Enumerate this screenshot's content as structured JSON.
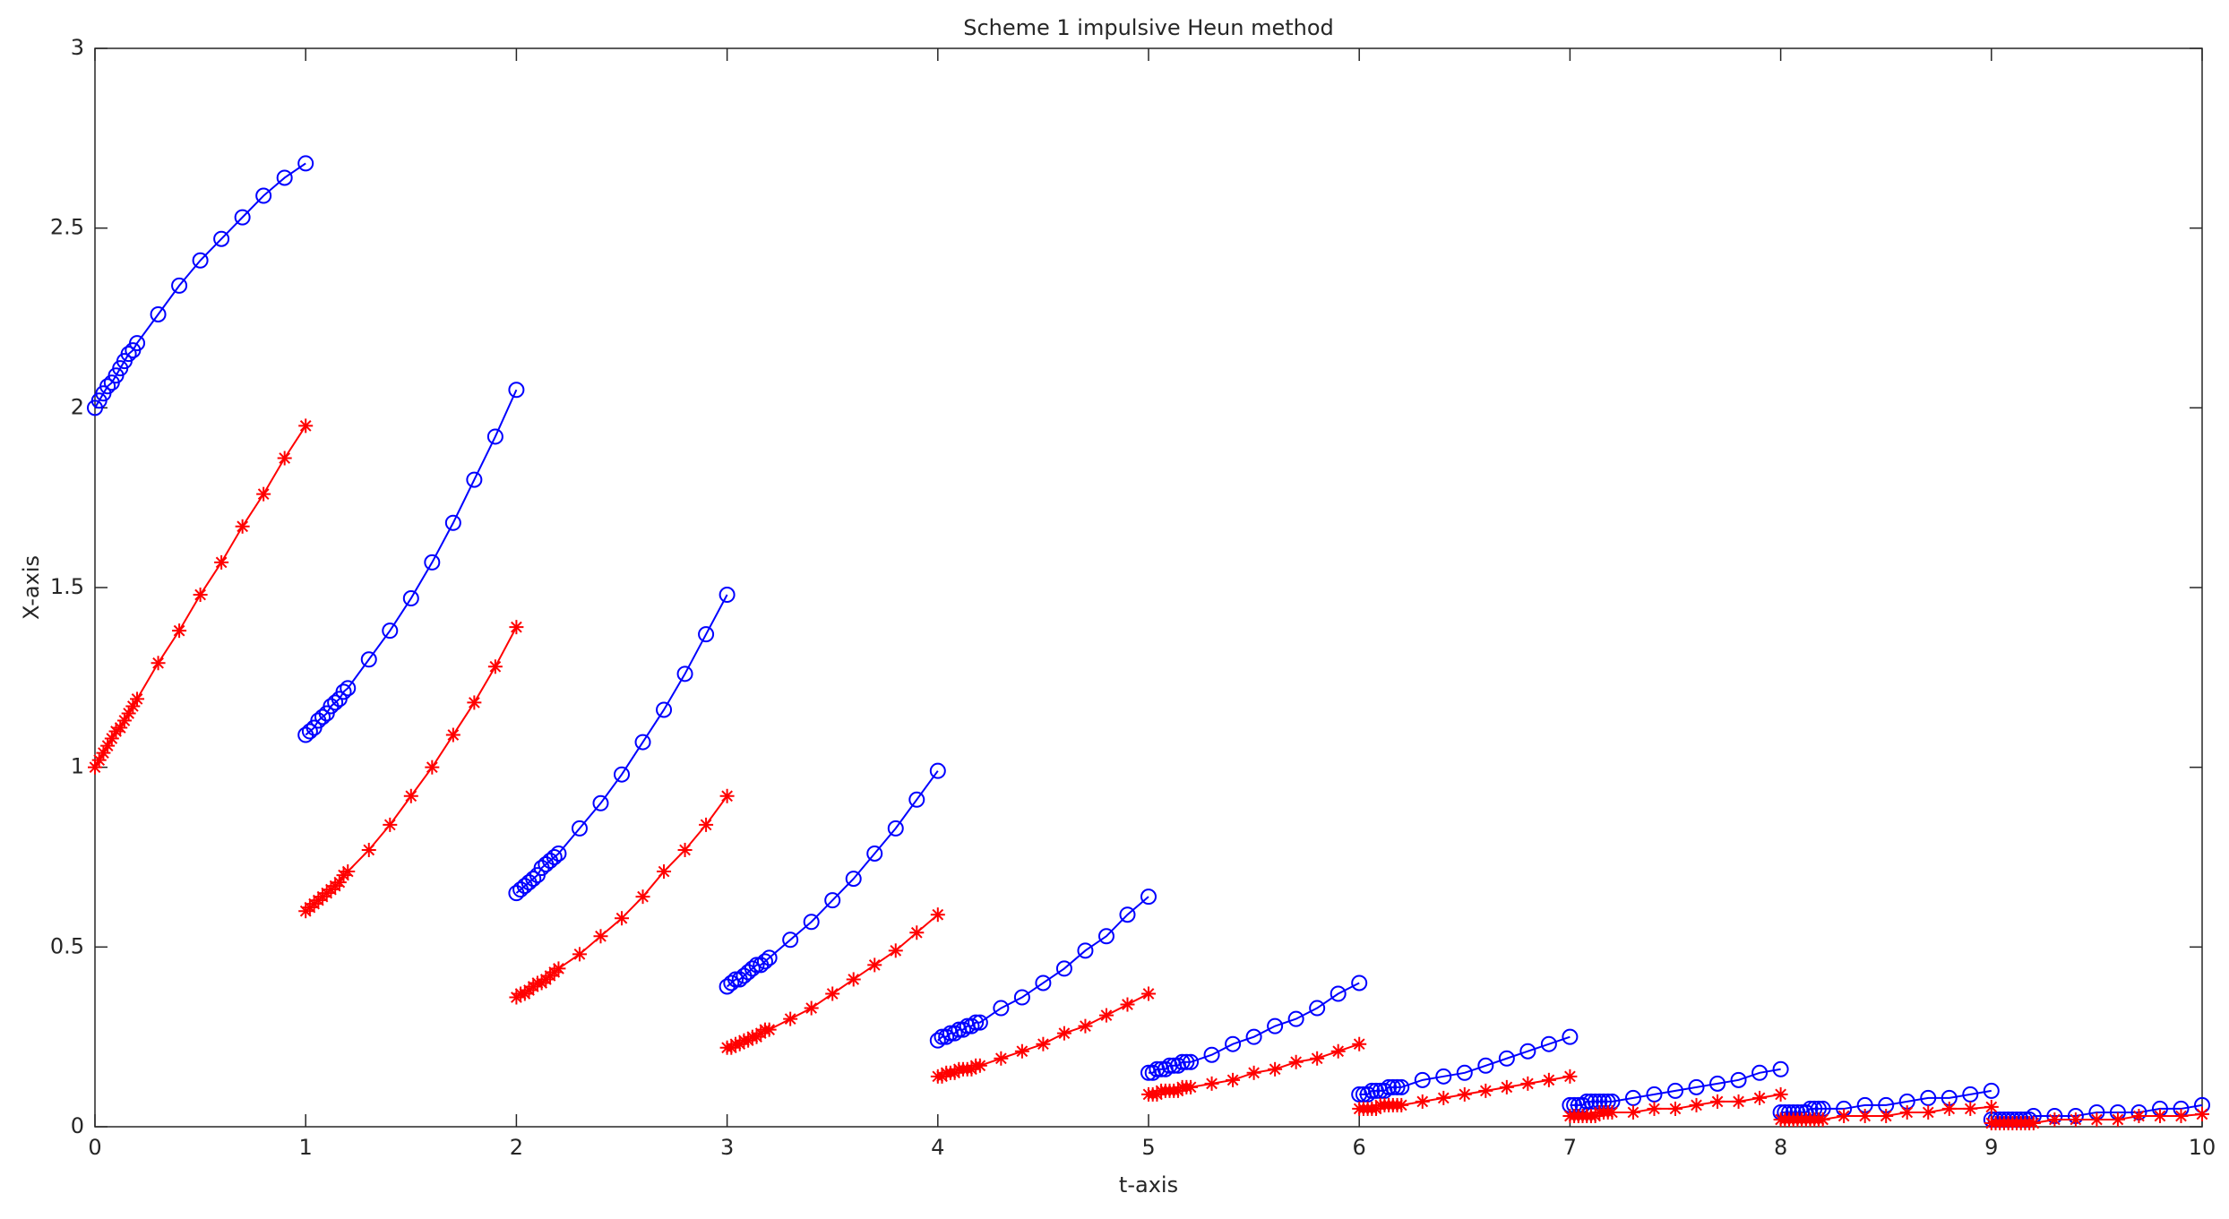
{
  "chart_data": {
    "type": "line",
    "title": "Scheme 1 impulsive Heun method",
    "xlabel": "t-axis",
    "ylabel": "X-axis",
    "xlim": [
      0,
      10
    ],
    "ylim": [
      0,
      3
    ],
    "xticks": [
      0,
      1,
      2,
      3,
      4,
      5,
      6,
      7,
      8,
      9,
      10
    ],
    "yticks": [
      0,
      0.5,
      1,
      1.5,
      2,
      2.5,
      3
    ],
    "x": [
      0,
      0.02,
      0.04,
      0.06,
      0.08,
      0.1,
      0.12,
      0.14,
      0.16,
      0.18,
      0.2,
      0.3,
      0.4,
      0.5,
      0.6,
      0.7,
      0.8,
      0.9,
      1,
      null,
      1,
      1.02,
      1.04,
      1.06,
      1.08,
      1.1,
      1.12,
      1.14,
      1.16,
      1.18,
      1.2,
      1.3,
      1.4,
      1.5,
      1.6,
      1.7,
      1.8,
      1.9,
      2,
      null,
      2,
      2.02,
      2.04,
      2.06,
      2.08,
      2.1,
      2.12,
      2.14,
      2.16,
      2.18,
      2.2,
      2.3,
      2.4,
      2.5,
      2.6,
      2.7,
      2.8,
      2.9,
      3,
      null,
      3,
      3.02,
      3.04,
      3.06,
      3.08,
      3.1,
      3.12,
      3.14,
      3.16,
      3.18,
      3.2,
      3.3,
      3.4,
      3.5,
      3.6,
      3.7,
      3.8,
      3.9,
      4,
      null,
      4,
      4.02,
      4.04,
      4.06,
      4.08,
      4.1,
      4.12,
      4.14,
      4.16,
      4.18,
      4.2,
      4.3,
      4.4,
      4.5,
      4.6,
      4.7,
      4.8,
      4.9,
      5,
      null,
      5,
      5.02,
      5.04,
      5.06,
      5.08,
      5.1,
      5.12,
      5.14,
      5.16,
      5.18,
      5.2,
      5.3,
      5.4,
      5.5,
      5.6,
      5.7,
      5.8,
      5.9,
      6,
      null,
      6,
      6.02,
      6.04,
      6.06,
      6.08,
      6.1,
      6.12,
      6.14,
      6.16,
      6.18,
      6.2,
      6.3,
      6.4,
      6.5,
      6.6,
      6.7,
      6.8,
      6.9,
      7,
      null,
      7,
      7.02,
      7.04,
      7.06,
      7.08,
      7.1,
      7.12,
      7.14,
      7.16,
      7.18,
      7.2,
      7.3,
      7.4,
      7.5,
      7.6,
      7.7,
      7.8,
      7.9,
      8,
      null,
      8,
      8.02,
      8.04,
      8.06,
      8.08,
      8.1,
      8.12,
      8.14,
      8.16,
      8.18,
      8.2,
      8.3,
      8.4,
      8.5,
      8.6,
      8.7,
      8.8,
      8.9,
      9,
      null,
      9,
      9.02,
      9.04,
      9.06,
      9.08,
      9.1,
      9.12,
      9.14,
      9.16,
      9.18,
      9.2,
      9.3,
      9.4,
      9.5,
      9.6,
      9.7,
      9.8,
      9.9,
      10
    ],
    "series": [
      {
        "color": "#0000ff",
        "marker": "o",
        "values": [
          2.0,
          2.02,
          2.04,
          2.06,
          2.07,
          2.09,
          2.11,
          2.13,
          2.15,
          2.16,
          2.18,
          2.26,
          2.34,
          2.41,
          2.47,
          2.53,
          2.59,
          2.64,
          2.68,
          null,
          1.09,
          1.1,
          1.11,
          1.13,
          1.14,
          1.15,
          1.17,
          1.18,
          1.19,
          1.21,
          1.22,
          1.3,
          1.38,
          1.47,
          1.57,
          1.68,
          1.8,
          1.92,
          2.05,
          null,
          0.65,
          0.66,
          0.67,
          0.68,
          0.69,
          0.7,
          0.72,
          0.73,
          0.74,
          0.75,
          0.76,
          0.83,
          0.9,
          0.98,
          1.07,
          1.16,
          1.26,
          1.37,
          1.48,
          null,
          0.39,
          0.4,
          0.41,
          0.41,
          0.42,
          0.43,
          0.44,
          0.45,
          0.45,
          0.46,
          0.47,
          0.52,
          0.57,
          0.63,
          0.69,
          0.76,
          0.83,
          0.91,
          0.99,
          null,
          0.24,
          0.25,
          0.25,
          0.26,
          0.26,
          0.27,
          0.27,
          0.28,
          0.28,
          0.29,
          0.29,
          0.33,
          0.36,
          0.4,
          0.44,
          0.49,
          0.53,
          0.59,
          0.64,
          null,
          0.15,
          0.15,
          0.16,
          0.16,
          0.16,
          0.17,
          0.17,
          0.17,
          0.18,
          0.18,
          0.18,
          0.2,
          0.23,
          0.25,
          0.28,
          0.3,
          0.33,
          0.37,
          0.4,
          null,
          0.09,
          0.09,
          0.09,
          0.1,
          0.1,
          0.1,
          0.1,
          0.11,
          0.11,
          0.11,
          0.11,
          0.13,
          0.14,
          0.15,
          0.17,
          0.19,
          0.21,
          0.23,
          0.25,
          null,
          0.06,
          0.06,
          0.06,
          0.06,
          0.07,
          0.07,
          0.07,
          0.07,
          0.07,
          0.07,
          0.07,
          0.08,
          0.09,
          0.1,
          0.11,
          0.12,
          0.13,
          0.15,
          0.16,
          null,
          0.04,
          0.04,
          0.04,
          0.04,
          0.04,
          0.04,
          0.04,
          0.05,
          0.05,
          0.05,
          0.05,
          0.05,
          0.06,
          0.06,
          0.07,
          0.08,
          0.08,
          0.09,
          0.1,
          null,
          0.02,
          0.02,
          0.02,
          0.02,
          0.02,
          0.02,
          0.02,
          0.02,
          0.02,
          0.02,
          0.03,
          0.03,
          0.03,
          0.04,
          0.04,
          0.04,
          0.05,
          0.05,
          0.06
        ]
      },
      {
        "color": "#ff0000",
        "marker": "*",
        "values": [
          1.0,
          1.02,
          1.04,
          1.06,
          1.08,
          1.1,
          1.11,
          1.13,
          1.15,
          1.17,
          1.19,
          1.29,
          1.38,
          1.48,
          1.57,
          1.67,
          1.76,
          1.86,
          1.95,
          null,
          0.6,
          0.61,
          0.62,
          0.63,
          0.64,
          0.65,
          0.66,
          0.67,
          0.68,
          0.7,
          0.71,
          0.77,
          0.84,
          0.92,
          1.0,
          1.09,
          1.18,
          1.28,
          1.39,
          null,
          0.36,
          0.37,
          0.37,
          0.38,
          0.39,
          0.4,
          0.4,
          0.41,
          0.42,
          0.43,
          0.44,
          0.48,
          0.53,
          0.58,
          0.64,
          0.71,
          0.77,
          0.84,
          0.92,
          null,
          0.22,
          0.22,
          0.23,
          0.23,
          0.24,
          0.24,
          0.25,
          0.25,
          0.26,
          0.27,
          0.27,
          0.3,
          0.33,
          0.37,
          0.41,
          0.45,
          0.49,
          0.54,
          0.59,
          null,
          0.14,
          0.14,
          0.15,
          0.15,
          0.15,
          0.16,
          0.16,
          0.16,
          0.16,
          0.17,
          0.17,
          0.19,
          0.21,
          0.23,
          0.26,
          0.28,
          0.31,
          0.34,
          0.37,
          null,
          0.09,
          0.09,
          0.09,
          0.1,
          0.1,
          0.1,
          0.1,
          0.1,
          0.11,
          0.11,
          0.11,
          0.12,
          0.13,
          0.15,
          0.16,
          0.18,
          0.19,
          0.21,
          0.23,
          null,
          0.05,
          0.05,
          0.05,
          0.05,
          0.05,
          0.06,
          0.06,
          0.06,
          0.06,
          0.06,
          0.06,
          0.07,
          0.08,
          0.09,
          0.1,
          0.11,
          0.12,
          0.13,
          0.14,
          null,
          0.03,
          0.03,
          0.03,
          0.03,
          0.03,
          0.03,
          0.03,
          0.04,
          0.04,
          0.04,
          0.04,
          0.04,
          0.05,
          0.05,
          0.06,
          0.07,
          0.07,
          0.08,
          0.09,
          null,
          0.02,
          0.02,
          0.02,
          0.02,
          0.02,
          0.02,
          0.02,
          0.02,
          0.02,
          0.02,
          0.02,
          0.03,
          0.03,
          0.03,
          0.04,
          0.04,
          0.05,
          0.05,
          0.055,
          null,
          0.01,
          0.01,
          0.01,
          0.01,
          0.01,
          0.01,
          0.01,
          0.01,
          0.01,
          0.01,
          0.01,
          0.02,
          0.02,
          0.02,
          0.02,
          0.03,
          0.03,
          0.03,
          0.035
        ]
      }
    ]
  }
}
